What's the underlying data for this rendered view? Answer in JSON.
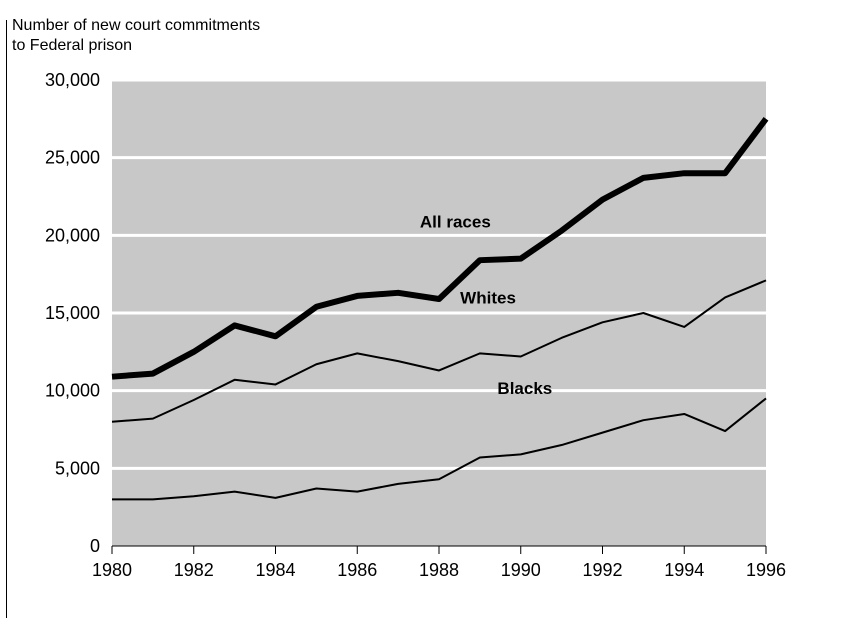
{
  "chart_data": {
    "type": "line",
    "title": "Number of new court commitments\nto Federal prison",
    "xlabel": "",
    "ylabel": "",
    "x": [
      1980,
      1981,
      1982,
      1983,
      1984,
      1985,
      1986,
      1987,
      1988,
      1989,
      1990,
      1991,
      1992,
      1993,
      1994,
      1995,
      1996
    ],
    "xticks": [
      "1980",
      "1982",
      "1984",
      "1986",
      "1988",
      "1990",
      "1992",
      "1994",
      "1996"
    ],
    "yticks": [
      "0",
      "5,000",
      "10,000",
      "15,000",
      "20,000",
      "25,000",
      "30,000"
    ],
    "ylim": [
      0,
      30000
    ],
    "xlim": [
      1980,
      1996
    ],
    "grid": "horizontal",
    "background": "#c8c8c8",
    "series": [
      {
        "name": "All races",
        "color": "#000000",
        "emphasis": "heavy",
        "values": [
          10900,
          11100,
          12500,
          14200,
          13500,
          15400,
          16100,
          16300,
          15900,
          18400,
          18500,
          20300,
          22300,
          23700,
          24000,
          24000,
          27500
        ]
      },
      {
        "name": "Whites",
        "color": "#000000",
        "emphasis": "normal",
        "values": [
          8000,
          8200,
          9400,
          10700,
          10400,
          11700,
          12400,
          11900,
          11300,
          12400,
          12200,
          13400,
          14400,
          15000,
          14100,
          16000,
          17100
        ]
      },
      {
        "name": "Blacks",
        "color": "#000000",
        "emphasis": "normal",
        "values": [
          3000,
          3000,
          3200,
          3500,
          3100,
          3700,
          3500,
          4000,
          4300,
          5700,
          5900,
          6500,
          7300,
          8100,
          8500,
          7400,
          9500
        ]
      }
    ]
  }
}
